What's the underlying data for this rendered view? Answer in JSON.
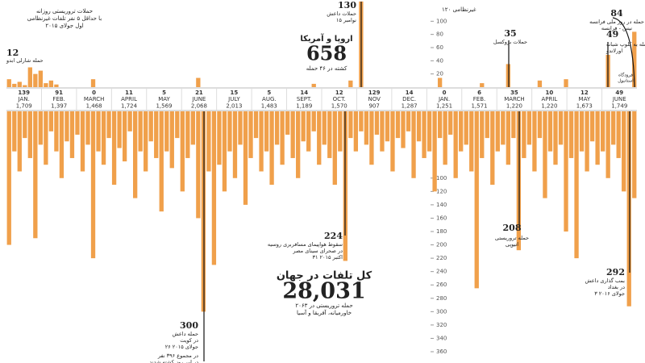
{
  "chart_data": [
    {
      "type": "bar",
      "color": "#f0a04b",
      "ylim": [
        0,
        120
      ],
      "yticks": [
        20,
        40,
        60,
        80,
        100
      ],
      "values": [
        12,
        5,
        8,
        3,
        30,
        20,
        25,
        6,
        10,
        4,
        0,
        0,
        0,
        0,
        0,
        0,
        12,
        0,
        0,
        0,
        0,
        0,
        0,
        0,
        0,
        0,
        0,
        0,
        0,
        0,
        0,
        0,
        0,
        0,
        0,
        0,
        14,
        0,
        0,
        0,
        0,
        0,
        0,
        0,
        0,
        0,
        0,
        0,
        0,
        0,
        0,
        0,
        0,
        0,
        0,
        0,
        0,
        0,
        5,
        0,
        0,
        0,
        0,
        0,
        0,
        10,
        0,
        130,
        0,
        0,
        0,
        0,
        0,
        0,
        0,
        0,
        0,
        0,
        0,
        0,
        0,
        0,
        14,
        0,
        0,
        0,
        0,
        0,
        0,
        0,
        6,
        0,
        0,
        0,
        0,
        35,
        0,
        0,
        0,
        0,
        0,
        10,
        0,
        0,
        0,
        0,
        12,
        0,
        0,
        0,
        0,
        0,
        0,
        0,
        49,
        0,
        0,
        0,
        0,
        84
      ]
    },
    {
      "type": "bar",
      "color": "#f0a04b",
      "ylim": [
        0,
        360
      ],
      "yticks": [
        100,
        120,
        140,
        160,
        180,
        200,
        220,
        240,
        260,
        280,
        300,
        320,
        340,
        360
      ],
      "values": [
        200,
        60,
        90,
        40,
        70,
        190,
        50,
        80,
        30,
        60,
        100,
        45,
        70,
        35,
        90,
        50,
        220,
        60,
        80,
        40,
        110,
        55,
        75,
        30,
        130,
        60,
        90,
        45,
        70,
        150,
        60,
        85,
        40,
        120,
        70,
        50,
        160,
        300,
        90,
        230,
        80,
        120,
        60,
        100,
        50,
        140,
        70,
        40,
        90,
        60,
        110,
        50,
        80,
        35,
        70,
        100,
        45,
        60,
        30,
        80,
        50,
        70,
        110,
        60,
        224,
        40,
        60,
        30,
        50,
        80,
        35,
        60,
        45,
        90,
        40,
        55,
        30,
        100,
        45,
        70,
        60,
        120,
        40,
        80,
        35,
        100,
        60,
        50,
        90,
        265,
        70,
        40,
        110,
        60,
        50,
        80,
        40,
        208,
        70,
        50,
        90,
        40,
        130,
        60,
        80,
        50,
        180,
        70,
        220,
        60,
        90,
        45,
        80,
        60,
        100,
        50,
        70,
        120,
        292,
        130
      ]
    }
  ],
  "month_strip": {
    "top_row": [
      "139",
      "91",
      "0",
      "11",
      "5",
      "21",
      "15",
      "5",
      "14",
      "12",
      "129",
      "14",
      "0",
      "6",
      "35",
      "10",
      "12",
      "49"
    ],
    "months": [
      "JAN.",
      "FEB.",
      "MARCH",
      "APRIL",
      "MAY",
      "JUNE",
      "JULY",
      "AUG.",
      "SEPT.",
      "OCT.",
      "NOV",
      "DEC.",
      "JAN.",
      "FEB.",
      "MARCH",
      "APRIL",
      "MAY",
      "JUNE"
    ],
    "bottom_row": [
      "1,709",
      "1,397",
      "1,468",
      "1,724",
      "1,569",
      "2,068",
      "2,013",
      "1,483",
      "1,189",
      "1,570",
      "907",
      "1,287",
      "1,251",
      "1,571",
      "1,220",
      "1,220",
      "1,673",
      "1,749"
    ]
  },
  "annotations": [
    {
      "lines": [
        "حملات تروریستی روزانه",
        "با حداقل ۵ نفر تلفات غیرنظامی",
        "اول جولای ۲۰۱۵"
      ]
    },
    {
      "lines": [
        "12",
        "حمله شارلی ابدو"
      ]
    },
    {
      "lines": [
        "130",
        "حملات داعش",
        "۱۵ نوامبر"
      ]
    },
    {
      "lines": [
        "اروپا و آمریکا",
        "658",
        "کشته در ۴۶ حمله"
      ]
    },
    {
      "lines": [
        "۱۲۰ غیرنظامی"
      ]
    },
    {
      "lines": [
        "84",
        "حمله در روز ملی فرانسه",
        "نیس - فرانسه"
      ]
    },
    {
      "lines": [
        "35",
        "حملات بروکسل"
      ]
    },
    {
      "lines": [
        "49",
        "حمله به کلوپ شبانه",
        "اورلاندو"
      ]
    },
    {
      "lines": [
        "فرودگاه",
        "استانبول"
      ]
    },
    {
      "lines": [
        "224",
        "سقوط هواپیمای مسافربری روسیه",
        "در صحرای سینای مصر",
        "۳۱ اکتبر ۲۰۱۵"
      ]
    },
    {
      "lines": [
        "کل تلفات در جهان",
        "28,031",
        "۲۰۶۳ حمله تروریستی در",
        "خاورمیانه، آفریقا و آسیا"
      ]
    },
    {
      "lines": [
        "300",
        "حمله داعش",
        "در کویت",
        "۲۶ جولای ۲۰۱۵",
        "در مجموع ۳۹۶ نفر",
        "در این روز کشته شدند"
      ]
    },
    {
      "lines": [
        "208",
        "حمله تروریستی",
        "اتیوپی"
      ]
    },
    {
      "lines": [
        "292",
        "بمب گذاری داعش",
        "در بغداد",
        "۳ جولای ۲۰۱۶"
      ]
    }
  ]
}
